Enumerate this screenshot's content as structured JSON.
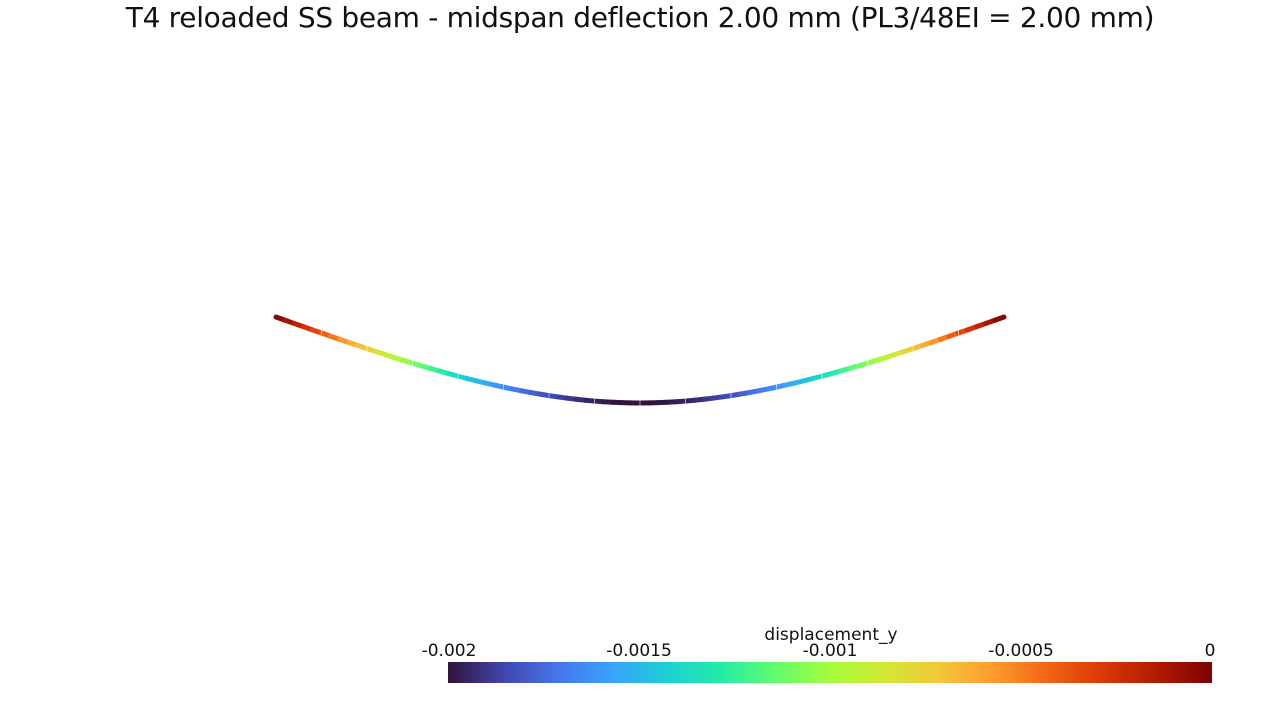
{
  "title": "T4 reloaded SS beam - midspan deflection 2.00 mm (PL3/48EI = 2.00 mm)",
  "colorbar": {
    "label": "displacement_y",
    "range": [
      -0.002,
      0
    ],
    "ticks": [
      {
        "value": -0.002,
        "label": "-0.002"
      },
      {
        "value": -0.0015,
        "label": "-0.0015"
      },
      {
        "value": -0.001,
        "label": "-0.001"
      },
      {
        "value": -0.0005,
        "label": "-0.0005"
      },
      {
        "value": 0,
        "label": "0"
      }
    ],
    "colormap": "turbo",
    "colors": [
      "#30123b",
      "#4145ab",
      "#4675ed",
      "#39a2fc",
      "#1bcfd4",
      "#24eca6",
      "#61fc6c",
      "#a4fc3b",
      "#d1e834",
      "#f3c63a",
      "#fe9b2d",
      "#f36315",
      "#d93806",
      "#b11901",
      "#7a0402"
    ]
  },
  "beam": {
    "support_condition": "simply supported",
    "midspan_deflection": -0.002
  }
}
